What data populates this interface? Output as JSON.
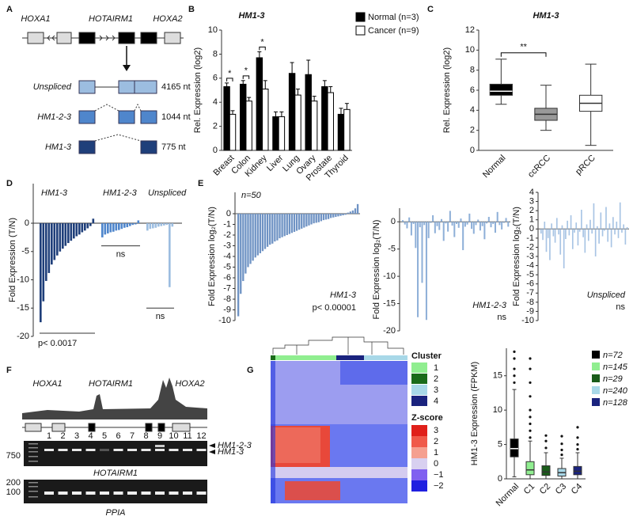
{
  "panel_labels": [
    "A",
    "B",
    "C",
    "D",
    "E",
    "F",
    "G"
  ],
  "diagram_a": {
    "genes": [
      "HOXA1",
      "HOTAIRM1",
      "HOXA2"
    ],
    "isoforms": [
      {
        "name": "Unspliced",
        "length": "4165 nt"
      },
      {
        "name": "HM1-2-3",
        "length": "1044 nt"
      },
      {
        "name": "HM1-3",
        "length": "775 nt"
      }
    ]
  },
  "chart_data": [
    {
      "type": "bar",
      "title": "HM1-3",
      "y_label": "Rel. Expression (log2)",
      "categories": [
        "Breast",
        "Colon",
        "Kidney",
        "Liver",
        "Lung",
        "Ovary",
        "Prostate",
        "Thyroid"
      ],
      "series": [
        {
          "name": "Normal (n=3)",
          "color": "#000000",
          "values": [
            5.3,
            5.5,
            7.7,
            2.8,
            6.4,
            6.3,
            5.3,
            3.0
          ],
          "errors": [
            0.3,
            0.3,
            0.5,
            0.4,
            0.9,
            1.2,
            0.5,
            0.5
          ]
        },
        {
          "name": "Cancer (n=9)",
          "color": "#ffffff",
          "values": [
            3.0,
            4.1,
            5.1,
            2.8,
            4.6,
            4.1,
            4.8,
            3.4
          ],
          "errors": [
            0.3,
            0.3,
            0.7,
            0.4,
            0.5,
            0.4,
            0.5,
            0.5
          ]
        }
      ],
      "ylim": [
        0,
        10
      ],
      "yticks": [
        0,
        2,
        4,
        6,
        8,
        10
      ],
      "annotations": [
        "*",
        "*",
        "*"
      ]
    },
    {
      "type": "box",
      "title": "HM1-3",
      "y_label": "Rel. Expression (log2)",
      "categories": [
        "Normal",
        "ccRCC",
        "pRCC"
      ],
      "colors": [
        "#000000",
        "#999999",
        "#ffffff"
      ],
      "boxes": [
        [
          4.6,
          5.5,
          5.9,
          6.6,
          9.1
        ],
        [
          2.0,
          3.0,
          3.6,
          4.2,
          6.5
        ],
        [
          0.5,
          3.9,
          4.7,
          5.5,
          8.6
        ]
      ],
      "ylim": [
        0,
        12
      ],
      "yticks": [
        0,
        2,
        4,
        6,
        8,
        10,
        12
      ],
      "annotations": [
        "**"
      ]
    },
    {
      "type": "waterfall",
      "y_label": "Fold Expression (T/N)",
      "series": [
        {
          "name": "HM1-3",
          "color": "#1f3f7a",
          "values": [
            -17.5,
            -13.8,
            -10.2,
            -8.8,
            -7.3,
            -6.5,
            -5.7,
            -5.0,
            -4.5,
            -4.0,
            -3.5,
            -3.1,
            -2.7,
            -2.3,
            -2.0,
            -1.6,
            -1.3,
            -0.9,
            -0.5,
            0.8
          ]
        },
        {
          "name": "HM1-2-3",
          "color": "#4f86cc",
          "values": [
            -2.5,
            -2.0,
            -1.8,
            -1.6,
            -1.5,
            -1.3,
            -1.2,
            -1.0,
            -0.8,
            -0.7,
            -0.5,
            -0.3,
            -0.2,
            0.5
          ]
        },
        {
          "name": "Unspliced",
          "color": "#9cbde0",
          "values": [
            -1.3,
            -1.0,
            -0.9,
            -0.8,
            -0.6,
            -0.5,
            -0.4,
            -0.3,
            -11.3,
            -0.6
          ]
        }
      ],
      "ylim": [
        -20,
        7
      ],
      "yticks": [
        0,
        -5,
        -10,
        -15,
        -20
      ],
      "ns_labels": [
        "ns",
        "ns"
      ],
      "p_value": "p< 0.0017"
    },
    {
      "type": "waterfall",
      "y_label": "Fold Expression log₂(T/N)",
      "color": "#6f93c4",
      "values": [
        -9.6,
        -7.5,
        -6.3,
        -5.6,
        -5.0,
        -4.7,
        -4.4,
        -4.1,
        -3.9,
        -3.7,
        -3.5,
        -3.3,
        -3.1,
        -2.9,
        -2.8,
        -2.6,
        -2.5,
        -2.3,
        -2.2,
        -2.1,
        -2.0,
        -1.9,
        -1.8,
        -1.7,
        -1.6,
        -1.5,
        -1.4,
        -1.3,
        -1.2,
        -1.1,
        -1.0,
        -0.9,
        -0.85,
        -0.8,
        -0.7,
        -0.6,
        -0.55,
        -0.5,
        -0.4,
        -0.35,
        -0.3,
        -0.25,
        -0.2,
        -0.15,
        -0.1,
        0.1,
        0.2,
        0.3,
        0.5,
        0.9
      ],
      "ylim": [
        -10,
        2
      ],
      "yticks": [
        0,
        -1,
        -2,
        -3,
        -4,
        -5,
        -6,
        -7,
        -8,
        -9,
        -10
      ],
      "n_label": "n=50",
      "gene_label": "HM1-3",
      "p_value": "p< 0.00001"
    },
    {
      "type": "waterfall",
      "y_label": "Fold Expression log₂(T/N)",
      "color": "#8fb0d8",
      "values": [
        0.3,
        -0.5,
        -1.2,
        0.8,
        -2.5,
        -0.4,
        -4.8,
        -17.5,
        -1.0,
        -11.2,
        -0.6,
        -18.0,
        -3.0,
        -0.2,
        1.2,
        -2.1,
        -0.8,
        -1.5,
        0.5,
        -3.5,
        -0.3,
        -1.8,
        2.0,
        -0.7,
        -2.8,
        -0.4,
        -1.1,
        0.6,
        -5.2,
        -0.9,
        -0.5,
        1.5,
        -1.3,
        -2.2,
        -0.6,
        0.4,
        -1.6,
        -0.8,
        -3.2,
        -0.3,
        0.9,
        -1.0,
        -0.4,
        -2.0,
        1.8,
        -0.6,
        -1.4,
        -0.2,
        0.7,
        -0.9
      ],
      "ylim": [
        -20,
        2.5
      ],
      "yticks": [
        0,
        -5,
        -10,
        -15,
        -20
      ],
      "gene_label": "HM1-2-3",
      "ns_label": "ns"
    },
    {
      "type": "waterfall",
      "y_label": "Fold Expression log₂(T/N)",
      "color": "#a8c4e4",
      "values": [
        -0.5,
        -1.2,
        0.8,
        -2.5,
        -1.0,
        -3.4,
        0.6,
        -0.8,
        -1.5,
        1.2,
        -0.6,
        -2.8,
        0.4,
        -4.3,
        -1.1,
        0.9,
        -0.7,
        1.5,
        -2.2,
        -0.4,
        0.7,
        -1.8,
        -0.3,
        2.1,
        -0.9,
        -2.6,
        0.5,
        -1.3,
        1.0,
        -0.5,
        2.8,
        -3.0,
        0.3,
        -1.6,
        1.8,
        -0.8,
        -0.2,
        2.4,
        -1.4,
        0.6,
        -2.0,
        1.3,
        -0.6,
        0.8,
        -1.0,
        2.9,
        -0.4,
        0.5,
        -1.7,
        0.2
      ],
      "ylim": [
        -10,
        4
      ],
      "yticks": [
        4,
        3,
        2,
        1,
        0,
        -1,
        -2,
        -3,
        -4,
        -5,
        -6,
        -7,
        -8,
        -9,
        -10
      ],
      "gene_label": "Unspliced",
      "ns_label": "ns"
    },
    {
      "type": "box",
      "y_label": "HM1-3 Expression (FPKM)",
      "categories": [
        "Normal",
        "C1",
        "C2",
        "C3",
        "C4"
      ],
      "colors": [
        "#000000",
        "#90ee90",
        "#1a5c1a",
        "#a8d8e8",
        "#1a237e"
      ],
      "legend_labels": [
        "n=72",
        "n=145",
        "n=29",
        "n=240",
        "n=128"
      ],
      "boxes": [
        [
          0.3,
          3.2,
          4.4,
          5.8,
          13.0
        ],
        [
          0,
          0.6,
          1.3,
          2.5,
          5.5
        ],
        [
          0,
          0.5,
          1.0,
          1.9,
          3.8
        ],
        [
          0,
          0.4,
          0.9,
          1.5,
          3.0
        ],
        [
          0,
          0.6,
          1.1,
          1.8,
          3.8
        ]
      ],
      "outliers": [
        [
          14,
          15,
          16,
          17.5,
          18.5
        ],
        [
          6,
          7,
          8,
          9,
          10,
          12,
          14,
          16,
          17.5
        ],
        [
          4.5,
          5.5,
          6.3
        ],
        [
          3.5,
          4.2,
          5.1,
          6.2
        ],
        [
          4.3,
          5,
          6,
          7.5
        ]
      ],
      "ylim": [
        0,
        19
      ],
      "yticks": [
        0,
        5,
        10,
        15
      ]
    }
  ],
  "gel_f": {
    "genes": [
      "HOXA1",
      "HOTAIRM1",
      "HOXA2"
    ],
    "lanes": [
      "1",
      "2",
      "3",
      "4",
      "5",
      "6",
      "7",
      "8",
      "9",
      "10",
      "11",
      "12"
    ],
    "marker_top": [
      "750"
    ],
    "band_labels": [
      "HM1-2-3",
      "HM1-3"
    ],
    "gel_titles": [
      "HOTAIRM1",
      "PPIA"
    ],
    "marker_bottom": [
      "200",
      "100"
    ]
  },
  "heatmap_g": {
    "cluster_title": "Cluster",
    "clusters": [
      "1",
      "2",
      "3",
      "4"
    ],
    "zscore_title": "Z-score",
    "zscore_labels": [
      "3",
      "2",
      "1",
      "0",
      "−1",
      "−2"
    ]
  }
}
